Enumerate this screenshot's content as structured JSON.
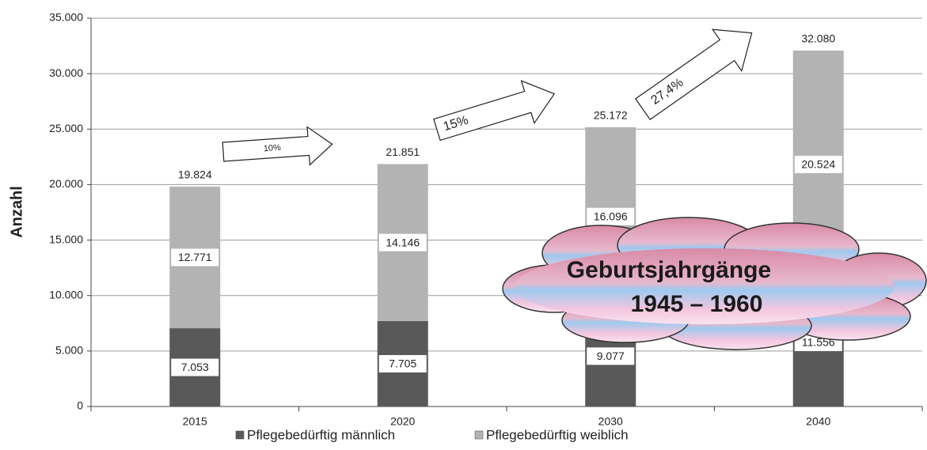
{
  "chart_data": {
    "type": "stacked-bar",
    "y_label": "Anzahl",
    "categories": [
      "2015",
      "2020",
      "2030",
      "2040"
    ],
    "series": [
      {
        "name": "Pflegebedürftig männlich",
        "color": "#595959",
        "values": [
          7053,
          7705,
          9077,
          11556
        ],
        "value_labels": [
          "7.053",
          "7.705",
          "9.077",
          "11.556"
        ]
      },
      {
        "name": "Pflegebedürftig weiblich",
        "color": "#b3b3b3",
        "values": [
          12771,
          14146,
          16096,
          20524
        ],
        "value_labels": [
          "12.771",
          "14.146",
          "16.096",
          "20.524"
        ]
      }
    ],
    "totals": {
      "values": [
        19824,
        21851,
        25172,
        32080
      ],
      "value_labels": [
        "19.824",
        "21.851",
        "25.172",
        "32.080"
      ]
    },
    "ylim": [
      0,
      35000
    ],
    "yticks": [
      0,
      {
        "value": 5000,
        "label": "5.000"
      },
      {
        "value": 10000,
        "label": "10.000"
      },
      {
        "value": 15000,
        "label": "15.000"
      },
      {
        "value": 20000,
        "label": "20.000"
      },
      {
        "value": 25000,
        "label": "25.000"
      },
      {
        "value": 30000,
        "label": "30.000"
      },
      {
        "value": 35000,
        "label": "35.000"
      }
    ],
    "grid": true,
    "legend": "bottom",
    "annotations": {
      "arrows": [
        "10%",
        "15%",
        "27,4%"
      ],
      "cloud": [
        "Geburtsjahrgänge",
        "1945 – 1960"
      ]
    }
  }
}
